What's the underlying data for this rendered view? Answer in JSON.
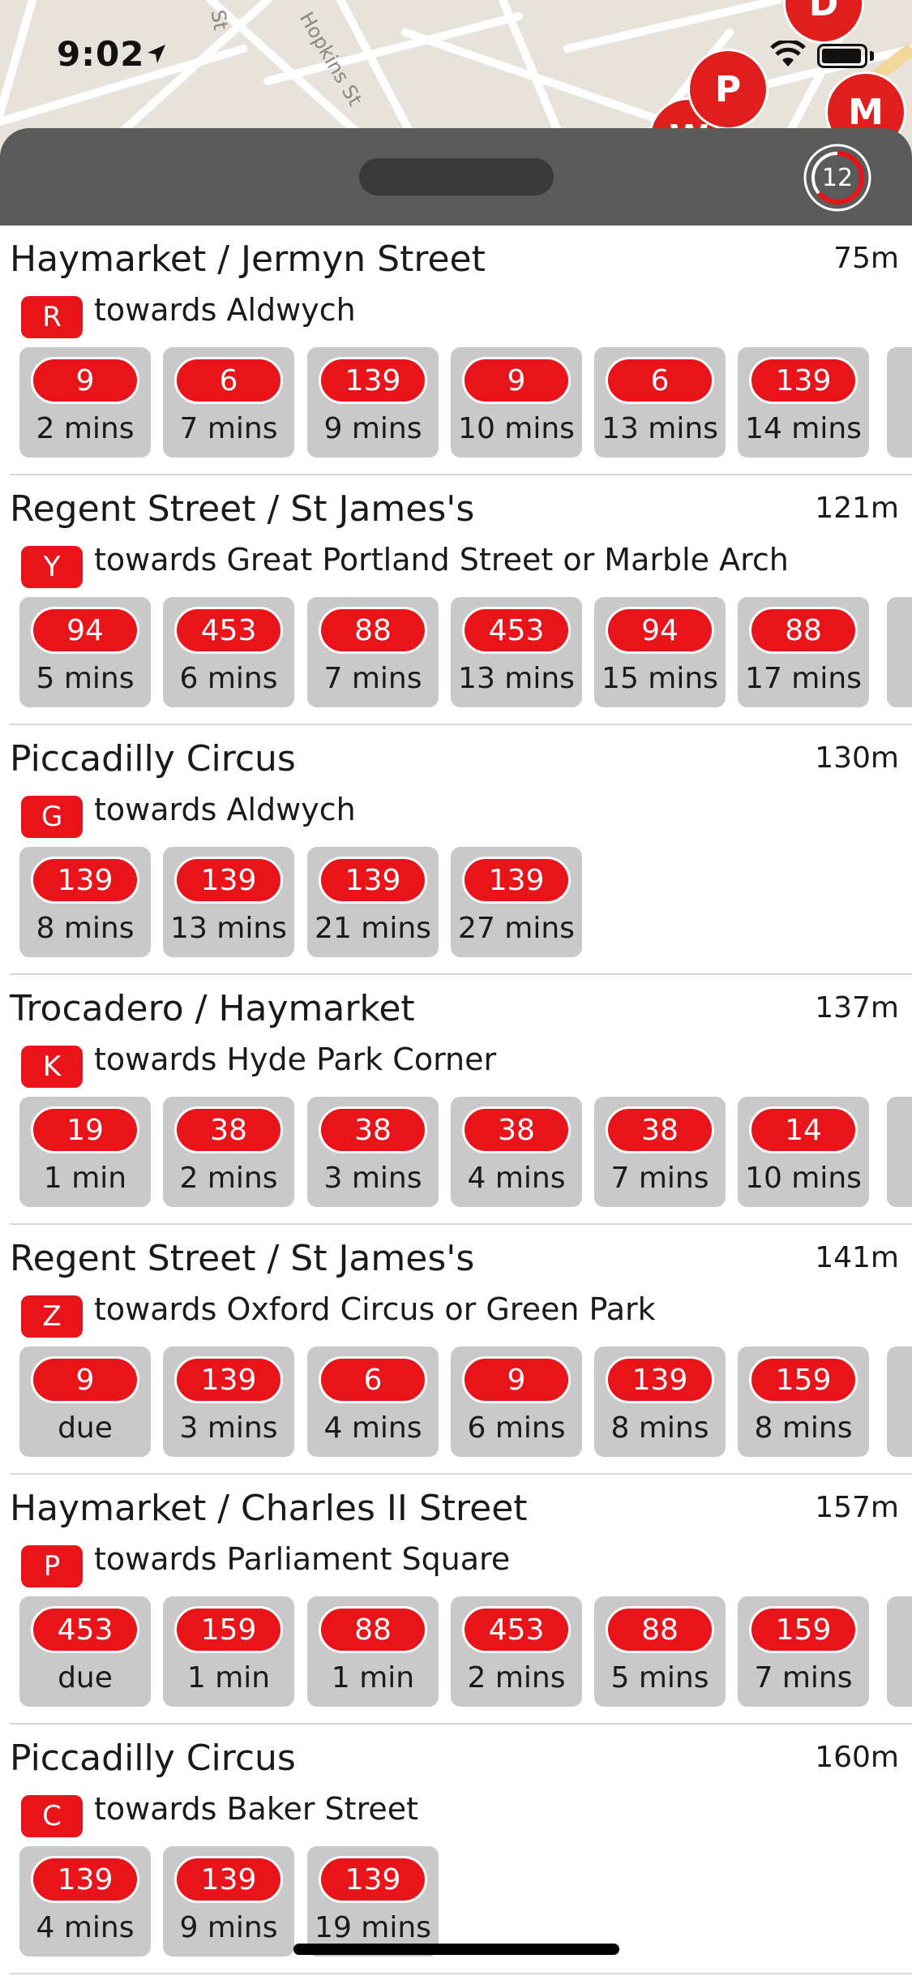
{
  "status_bar": {
    "time": "9:02"
  },
  "map": {
    "streets": [
      "St",
      "Hopkins St"
    ],
    "pins": [
      "D",
      "P",
      "W",
      "M"
    ]
  },
  "header": {
    "refresh_countdown": "12"
  },
  "stops": [
    {
      "name": "Haymarket / Jermyn Street",
      "distance": "75m",
      "letter": "R",
      "towards": "towards Aldwych",
      "arrivals": [
        {
          "route": "9",
          "eta": "2 mins"
        },
        {
          "route": "6",
          "eta": "7 mins"
        },
        {
          "route": "139",
          "eta": "9 mins"
        },
        {
          "route": "9",
          "eta": "10 mins"
        },
        {
          "route": "6",
          "eta": "13 mins"
        },
        {
          "route": "139",
          "eta": "14 mins"
        }
      ]
    },
    {
      "name": "Regent Street / St James's",
      "distance": "121m",
      "letter": "Y",
      "towards": "towards Great Portland Street or Marble Arch",
      "arrivals": [
        {
          "route": "94",
          "eta": "5 mins"
        },
        {
          "route": "453",
          "eta": "6 mins"
        },
        {
          "route": "88",
          "eta": "7 mins"
        },
        {
          "route": "453",
          "eta": "13 mins"
        },
        {
          "route": "94",
          "eta": "15 mins"
        },
        {
          "route": "88",
          "eta": "17 mins"
        }
      ]
    },
    {
      "name": "Piccadilly Circus",
      "distance": "130m",
      "letter": "G",
      "towards": "towards Aldwych",
      "arrivals": [
        {
          "route": "139",
          "eta": "8 mins"
        },
        {
          "route": "139",
          "eta": "13 mins"
        },
        {
          "route": "139",
          "eta": "21 mins"
        },
        {
          "route": "139",
          "eta": "27 mins"
        }
      ]
    },
    {
      "name": "Trocadero / Haymarket",
      "distance": "137m",
      "letter": "K",
      "towards": "towards Hyde Park Corner",
      "arrivals": [
        {
          "route": "19",
          "eta": "1 min"
        },
        {
          "route": "38",
          "eta": "2 mins"
        },
        {
          "route": "38",
          "eta": "3 mins"
        },
        {
          "route": "38",
          "eta": "4 mins"
        },
        {
          "route": "38",
          "eta": "7 mins"
        },
        {
          "route": "14",
          "eta": "10 mins"
        }
      ]
    },
    {
      "name": "Regent Street / St James's",
      "distance": "141m",
      "letter": "Z",
      "towards": "towards Oxford Circus or Green Park",
      "arrivals": [
        {
          "route": "9",
          "eta": "due"
        },
        {
          "route": "139",
          "eta": "3 mins"
        },
        {
          "route": "6",
          "eta": "4 mins"
        },
        {
          "route": "9",
          "eta": "6 mins"
        },
        {
          "route": "139",
          "eta": "8 mins"
        },
        {
          "route": "159",
          "eta": "8 mins"
        }
      ]
    },
    {
      "name": "Haymarket / Charles II Street",
      "distance": "157m",
      "letter": "P",
      "towards": "towards Parliament Square",
      "arrivals": [
        {
          "route": "453",
          "eta": "due"
        },
        {
          "route": "159",
          "eta": "1 min"
        },
        {
          "route": "88",
          "eta": "1 min"
        },
        {
          "route": "453",
          "eta": "2 mins"
        },
        {
          "route": "88",
          "eta": "5 mins"
        },
        {
          "route": "159",
          "eta": "7 mins"
        }
      ]
    },
    {
      "name": "Piccadilly Circus",
      "distance": "160m",
      "letter": "C",
      "towards": "towards Baker Street",
      "arrivals": [
        {
          "route": "139",
          "eta": "4 mins"
        },
        {
          "route": "139",
          "eta": "9 mins"
        },
        {
          "route": "139",
          "eta": "19 mins"
        }
      ]
    }
  ]
}
